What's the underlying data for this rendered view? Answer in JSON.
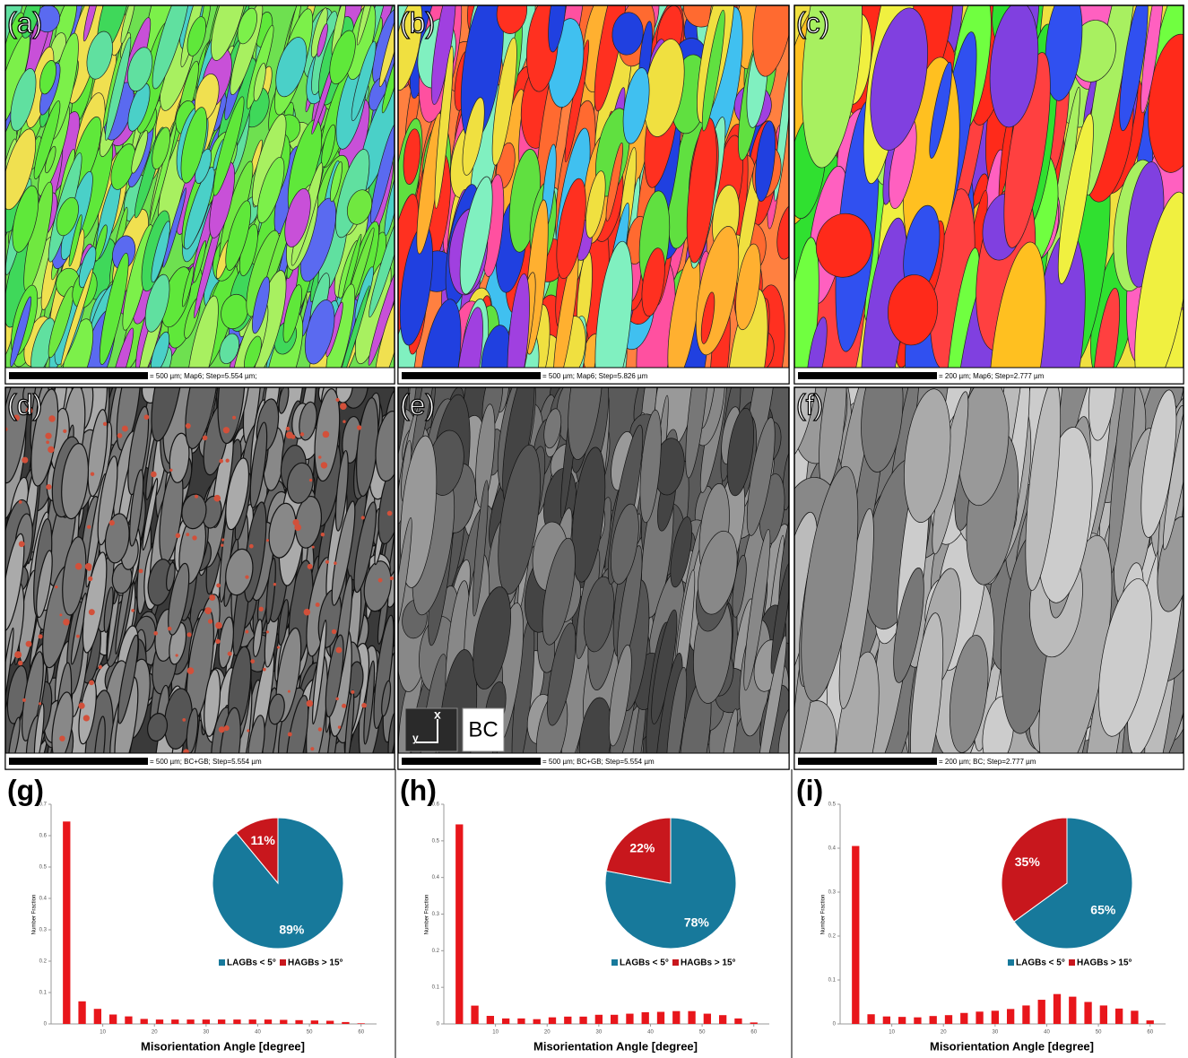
{
  "panels": [
    {
      "label": "(a)",
      "scale": "= 500 µm; Map6; Step=5.554 µm;"
    },
    {
      "label": "(b)",
      "scale": "= 500 µm; Map6; Step=5.826 µm"
    },
    {
      "label": "(c)",
      "scale": "= 200 µm; Map6; Step=2.777 µm"
    },
    {
      "label": "(d)",
      "scale": "= 500 µm; BC+GB; Step=5.554 µm"
    },
    {
      "label": "(e)",
      "scale": "= 500 µm; BC+GB; Step=5.554 µm"
    },
    {
      "label": "(f)",
      "scale": "= 200 µm; BC; Step=2.777 µm"
    }
  ],
  "inset": {
    "x_axis": "x",
    "y_axis": "y",
    "label": "BC"
  },
  "chart_data": [
    {
      "type": "bar",
      "label": "(g)",
      "x_label": "Misorientation Angle [degree]",
      "y_label": "Number Fraction",
      "color": "#e8161b",
      "x": [
        3,
        6,
        9,
        12,
        15,
        18,
        21,
        24,
        27,
        30,
        33,
        36,
        39,
        42,
        45,
        48,
        51,
        54,
        57,
        60
      ],
      "values": [
        0.645,
        0.072,
        0.048,
        0.03,
        0.024,
        0.016,
        0.014,
        0.014,
        0.014,
        0.014,
        0.014,
        0.014,
        0.014,
        0.014,
        0.013,
        0.012,
        0.011,
        0.01,
        0.006,
        0.002
      ],
      "xlim": [
        0,
        63
      ],
      "xticks": [
        10,
        20,
        30,
        40,
        50,
        60
      ],
      "ylim": [
        0,
        0.7
      ],
      "yticks": [
        0,
        0.1,
        0.2,
        0.3,
        0.4,
        0.5,
        0.6,
        0.7
      ]
    },
    {
      "type": "pie",
      "categories": [
        "LAGBs < 5°",
        "HAGBs > 15°"
      ],
      "values": [
        89,
        11
      ],
      "value_labels": [
        "89%",
        "11%"
      ],
      "colors": [
        "#17799b",
        "#c8171d"
      ]
    },
    {
      "type": "bar",
      "label": "(h)",
      "x_label": "Misorientation Angle [degree]",
      "y_label": "Number Fraction",
      "color": "#e8161b",
      "x": [
        3,
        6,
        9,
        12,
        15,
        18,
        21,
        24,
        27,
        30,
        33,
        36,
        39,
        42,
        45,
        48,
        51,
        54,
        57,
        60
      ],
      "values": [
        0.545,
        0.05,
        0.022,
        0.015,
        0.015,
        0.013,
        0.018,
        0.02,
        0.02,
        0.025,
        0.025,
        0.028,
        0.032,
        0.033,
        0.035,
        0.035,
        0.028,
        0.024,
        0.015,
        0.004
      ],
      "xlim": [
        0,
        63
      ],
      "xticks": [
        10,
        20,
        30,
        40,
        50,
        60
      ],
      "ylim": [
        0,
        0.6
      ],
      "yticks": [
        0,
        0.1,
        0.2,
        0.3,
        0.4,
        0.5,
        0.6
      ]
    },
    {
      "type": "pie",
      "categories": [
        "LAGBs < 5°",
        "HAGBs > 15°"
      ],
      "values": [
        78,
        22
      ],
      "value_labels": [
        "78%",
        "22%"
      ],
      "colors": [
        "#17799b",
        "#c8171d"
      ]
    },
    {
      "type": "bar",
      "label": "(i)",
      "x_label": "Misorientation Angle [degree]",
      "y_label": "Number Fraction",
      "color": "#e8161b",
      "x": [
        3,
        6,
        9,
        12,
        15,
        18,
        21,
        24,
        27,
        30,
        33,
        36,
        39,
        42,
        45,
        48,
        51,
        54,
        57,
        60
      ],
      "values": [
        0.405,
        0.022,
        0.017,
        0.016,
        0.015,
        0.018,
        0.02,
        0.025,
        0.028,
        0.03,
        0.034,
        0.042,
        0.055,
        0.068,
        0.062,
        0.05,
        0.042,
        0.035,
        0.03,
        0.008
      ],
      "xlim": [
        0,
        63
      ],
      "xticks": [
        10,
        20,
        30,
        40,
        50,
        60
      ],
      "ylim": [
        0,
        0.5
      ],
      "yticks": [
        0,
        0.1,
        0.2,
        0.3,
        0.4,
        0.5
      ]
    },
    {
      "type": "pie",
      "categories": [
        "LAGBs < 5°",
        "HAGBs > 15°"
      ],
      "values": [
        65,
        35
      ],
      "value_labels": [
        "65%",
        "35%"
      ],
      "colors": [
        "#17799b",
        "#c8171d"
      ]
    }
  ]
}
